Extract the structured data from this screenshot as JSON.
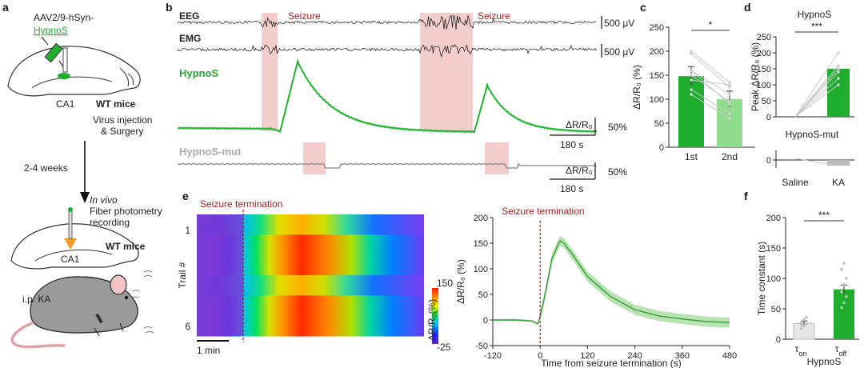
{
  "panel_labels": {
    "a": "a",
    "b": "b",
    "c": "c",
    "d": "d",
    "e": "e",
    "f": "f"
  },
  "panel_a": {
    "virus_line1": "AAV2/9-hSyn-",
    "virus_line2": "HypnoS",
    "region": "CA1",
    "mouse1": "WT mice",
    "step1_line1": "Virus injection",
    "step1_line2": "& Surgery",
    "interval": "2-4 weeks",
    "step2_line1": "In vivo",
    "step2_line2": "Fiber photometry",
    "step2_line3": "recording",
    "region2": "CA1",
    "mouse2": "WT mice",
    "injection": "i.p. KA"
  },
  "panel_b": {
    "eeg_label": "EEG",
    "emg_label": "EMG",
    "seizure_label": "Seizure",
    "eeg_scale": "500 μV",
    "emg_scale": "500 μV",
    "hypnos_label": "HypnoS",
    "mut_label": "HypnoS-mut",
    "dr_label": "ΔR/R₀",
    "dr_scale": "50%",
    "time_scale": "180 s",
    "time_scale2": "180 s",
    "dr_label2": "ΔR/R₀",
    "dr_scale2": "50%",
    "colors": {
      "seizure": "#f2c4c4",
      "hypnos": "#1fb52e",
      "mut": "#9a9a9a"
    }
  },
  "chart_data": [
    {
      "id": "c",
      "type": "bar",
      "categories": [
        "1st",
        "2nd"
      ],
      "values": [
        148,
        100
      ],
      "errors": [
        20,
        17
      ],
      "ylabel": "ΔR/R₀ (%)",
      "ylim": [
        0,
        250
      ],
      "yticks": [
        0,
        50,
        100,
        150,
        200,
        250
      ],
      "significance": "*",
      "paired_points": [
        [
          195,
          125
        ],
        [
          200,
          135
        ],
        [
          160,
          90
        ],
        [
          150,
          95
        ],
        [
          120,
          70
        ],
        [
          140,
          130
        ],
        [
          110,
          60
        ],
        [
          160,
          110
        ]
      ],
      "colors": [
        "#1fad2d",
        "#8fdc8f"
      ]
    },
    {
      "id": "d",
      "type": "bar",
      "title": "HypnoS",
      "categories": [
        "Saline",
        "KA"
      ],
      "values": [
        0,
        150
      ],
      "ylabel": "Peak ΔR/R₀ (%)",
      "ylim": [
        0,
        250
      ],
      "yticks": [
        0,
        50,
        100,
        150,
        200,
        250
      ],
      "significance": "***",
      "paired_points": [
        [
          0,
          200
        ],
        [
          0,
          160
        ],
        [
          0,
          150
        ],
        [
          0,
          120
        ],
        [
          0,
          100
        ],
        [
          0,
          140
        ]
      ],
      "mut_title": "HypnoS-mut",
      "mut_values": [
        0,
        -15
      ],
      "mut_yticks": [
        0
      ],
      "colors": [
        "#1fad2d",
        "#bbbbbb"
      ]
    },
    {
      "id": "e_heatmap",
      "type": "heatmap",
      "title": "Seizure termination",
      "ylabel": "Trail #",
      "rows": 6,
      "row_labels": [
        "1",
        "6"
      ],
      "cbar_max": "150",
      "cbar_min": "-25",
      "cbar_label": "ΔR/R₀(%)",
      "time_scale": "1 min"
    },
    {
      "id": "e_trace",
      "type": "line",
      "title": "Seizure termination",
      "xlabel": "Time from seizure termination  (s)",
      "ylabel": "ΔR/R₀ (%)",
      "xlim": [
        -120,
        480
      ],
      "ylim": [
        -50,
        200
      ],
      "xticks": [
        -120,
        0,
        120,
        240,
        360,
        480
      ],
      "yticks": [
        -50,
        0,
        50,
        100,
        150,
        200
      ],
      "x": [
        -120,
        -60,
        -20,
        -5,
        10,
        30,
        50,
        60,
        80,
        120,
        180,
        240,
        300,
        360,
        420,
        480
      ],
      "y": [
        0,
        0,
        -2,
        -8,
        40,
        120,
        155,
        150,
        130,
        85,
        45,
        20,
        8,
        2,
        -3,
        -5
      ],
      "band": 10,
      "colors": {
        "line": "#3a9a3a",
        "band": "#a8dca0"
      }
    },
    {
      "id": "f",
      "type": "bar",
      "categories": [
        "τ_on",
        "τ_off"
      ],
      "cat_main": [
        "τ",
        "τ"
      ],
      "cat_sub": [
        "on",
        "off"
      ],
      "values": [
        26,
        82
      ],
      "errors": [
        4,
        7
      ],
      "ylabel": "Time constant (s)",
      "xlabel": "HypnoS",
      "ylim": [
        0,
        200
      ],
      "yticks": [
        0,
        50,
        100,
        150,
        200
      ],
      "significance": "***",
      "points": [
        [
          18,
          22,
          25,
          28,
          32,
          36,
          24
        ],
        [
          52,
          60,
          70,
          78,
          90,
          100,
          115,
          125
        ]
      ],
      "colors": [
        "#e6e6e6",
        "#1fad2d"
      ]
    }
  ]
}
